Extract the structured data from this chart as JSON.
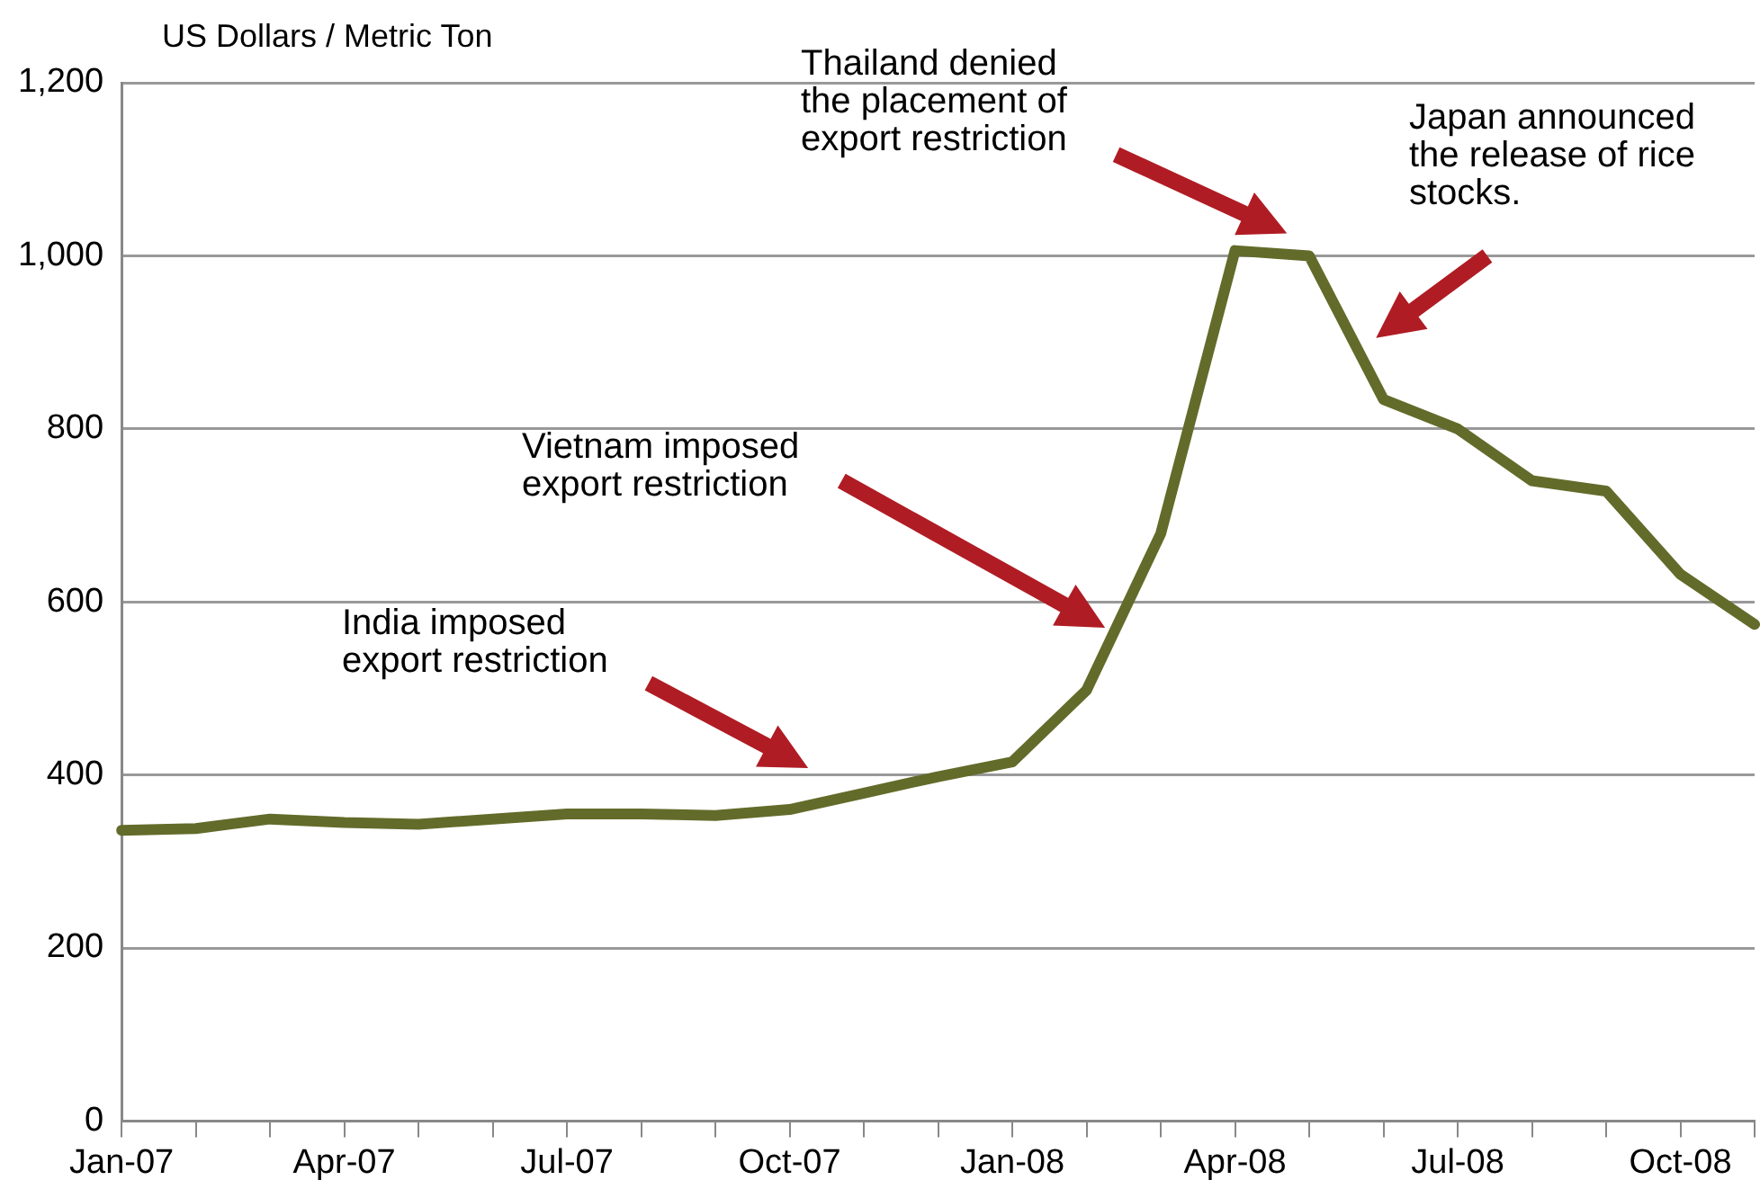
{
  "chart_data": {
    "type": "line",
    "ylabel": "US Dollars / Metric Ton",
    "categories": [
      "Jan-07",
      null,
      null,
      "Apr-07",
      null,
      null,
      "Jul-07",
      null,
      null,
      "Oct-07",
      null,
      null,
      "Jan-08",
      null,
      null,
      "Apr-08",
      null,
      null,
      "Jul-08",
      null,
      null,
      "Oct-08",
      null
    ],
    "series": [
      {
        "color": "#636b2a",
        "values": [
          336,
          338,
          349,
          345,
          343,
          349,
          355,
          355,
          353,
          360,
          379,
          398,
          415,
          498,
          679,
          1006,
          1000,
          834,
          800,
          740,
          728,
          632,
          574
        ]
      }
    ],
    "ylim": [
      0,
      1200
    ],
    "yticks": [
      0,
      200,
      400,
      600,
      800,
      {
        "value": 1000,
        "label": "1,000"
      },
      {
        "value": 1200,
        "label": "1,200"
      }
    ],
    "grid": "y",
    "legend": false,
    "marker": "none",
    "line_style": "solid",
    "annotations": [
      "India imposed export restriction",
      "Vietnam imposed export restriction",
      "Thailand denied the placement of export restriction",
      "Japan announced the release of rice stocks."
    ]
  }
}
